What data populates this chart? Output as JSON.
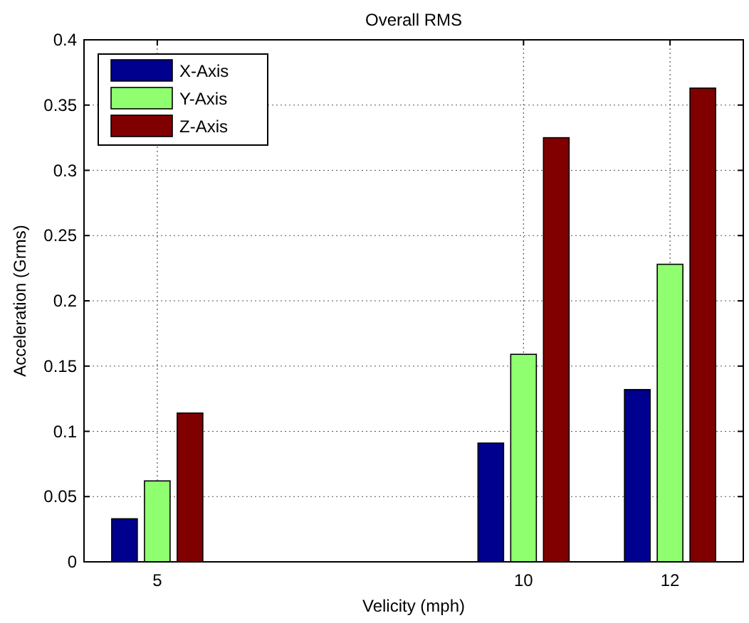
{
  "chart_data": {
    "type": "bar",
    "title": "Overall RMS",
    "xlabel": "Velicity (mph)",
    "ylabel": "Acceleration (Grms)",
    "x": [
      5,
      10,
      12
    ],
    "series": [
      {
        "name": "X-Axis",
        "color": "#00008f",
        "values": [
          0.033,
          0.091,
          0.132
        ]
      },
      {
        "name": "Y-Axis",
        "color": "#8fff6f",
        "values": [
          0.062,
          0.159,
          0.228
        ]
      },
      {
        "name": "Z-Axis",
        "color": "#800000",
        "values": [
          0.114,
          0.325,
          0.363
        ]
      }
    ],
    "xlim": [
      4,
      13
    ],
    "xticks": [
      5,
      10,
      12
    ],
    "ylim": [
      0,
      0.4
    ],
    "yticks": [
      0,
      0.05,
      0.1,
      0.15,
      0.2,
      0.25,
      0.3,
      0.35,
      0.4
    ],
    "grid": true,
    "legend": "top left"
  }
}
